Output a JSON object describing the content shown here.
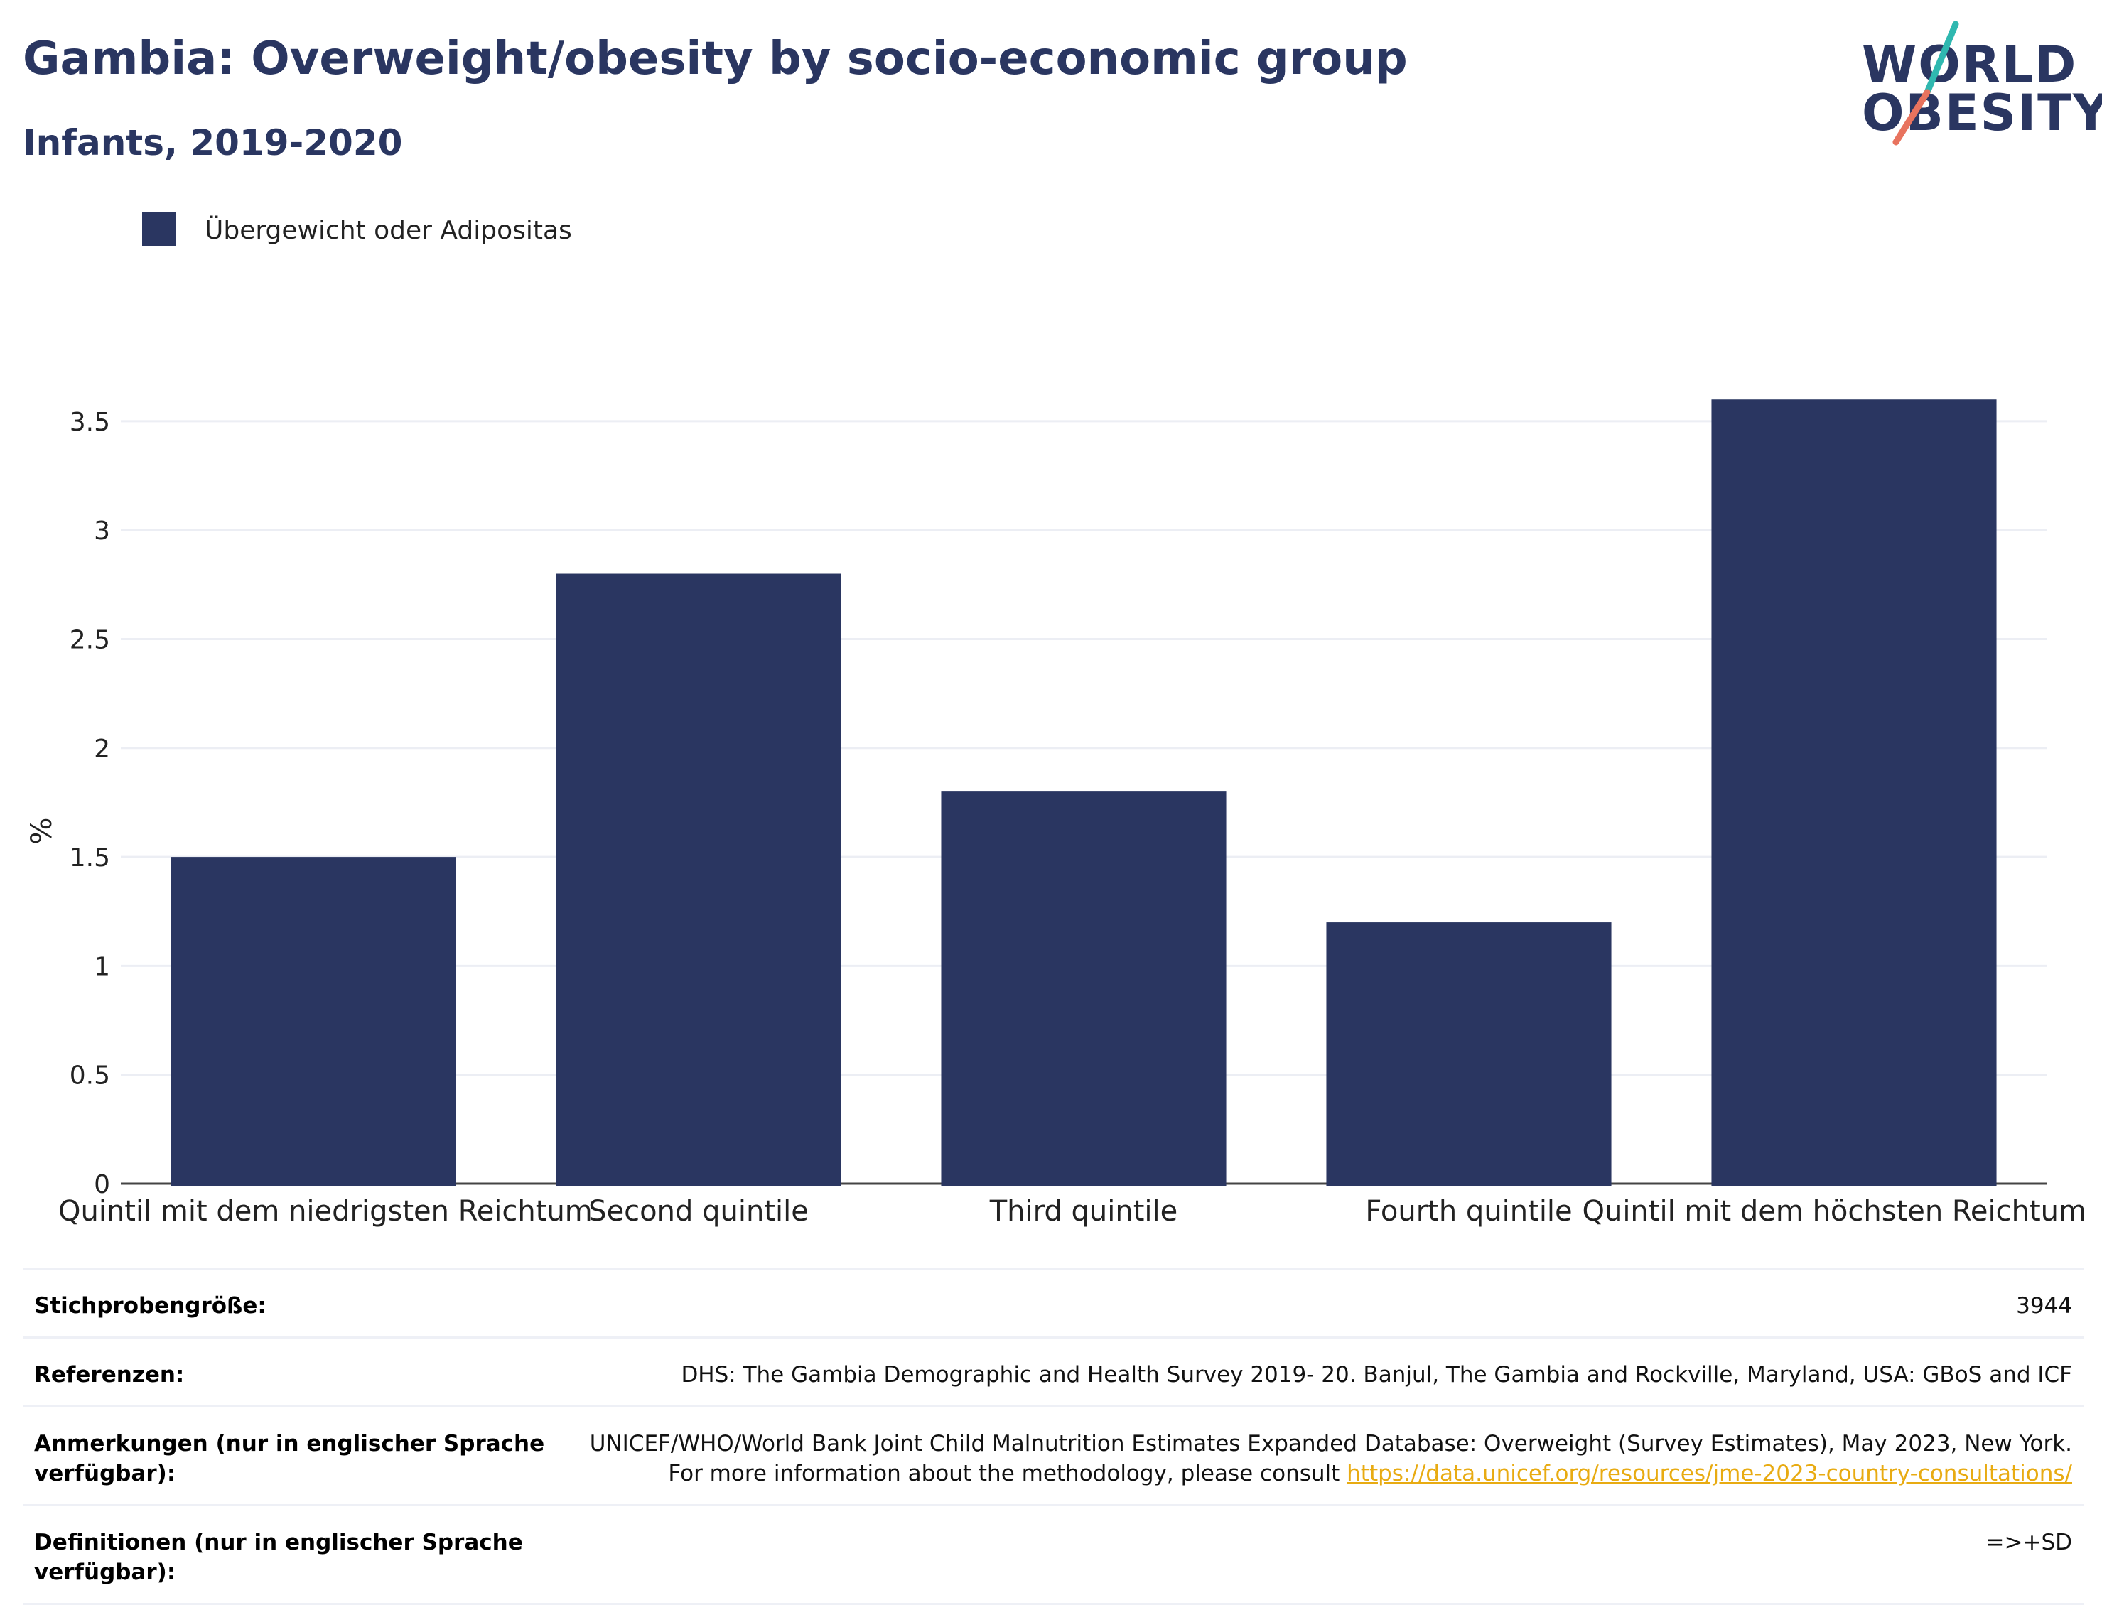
{
  "header": {
    "title": "Gambia: Overweight/obesity by socio-economic group",
    "subtitle": "Infants, 2019-2020"
  },
  "logo": {
    "line1": "WORLD",
    "line2": "OBESITY",
    "accent_colors": [
      "#2fb8b0",
      "#e8735e"
    ]
  },
  "chart_data": {
    "type": "bar",
    "categories": [
      "Quintil mit dem niedrigsten Reichtum",
      "Second quintile",
      "Third quintile",
      "Fourth quintile",
      "Quintil mit dem höchsten Reichtum"
    ],
    "series": [
      {
        "name": "Übergewicht oder Adipositas",
        "values": [
          1.5,
          2.8,
          1.8,
          1.2,
          3.6
        ],
        "color": "#2a3661"
      }
    ],
    "ylabel": "%",
    "ylim": [
      0,
      3.75
    ],
    "yticks": [
      0,
      0.5,
      1,
      1.5,
      2,
      2.5,
      3,
      3.5
    ],
    "ytick_labels": [
      "0",
      "0.5",
      "1",
      "1.5",
      "2",
      "2.5",
      "3",
      "3.5"
    ],
    "grid": true,
    "legend_position": "top-left"
  },
  "meta": {
    "sample_label": "Stichprobengröße:",
    "sample_value": "3944",
    "references_label": "Referenzen:",
    "references_value": "DHS: The Gambia Demographic and Health Survey 2019- 20. Banjul, The Gambia and Rockville, Maryland, USA: GBoS and ICF",
    "notes_label": "Anmerkungen (nur in englischer Sprache verfügbar):",
    "notes_value": "UNICEF/WHO/World Bank Joint Child Malnutrition Estimates Expanded Database: Overweight (Survey Estimates), May 2023, New York. For more information about the methodology, please consult",
    "notes_link": "https://data.unicef.org/resources/jme-2023-country-consultations/",
    "definitions_label": "Definitionen (nur in englischer Sprache verfügbar):",
    "definitions_value": "=>+SD"
  }
}
